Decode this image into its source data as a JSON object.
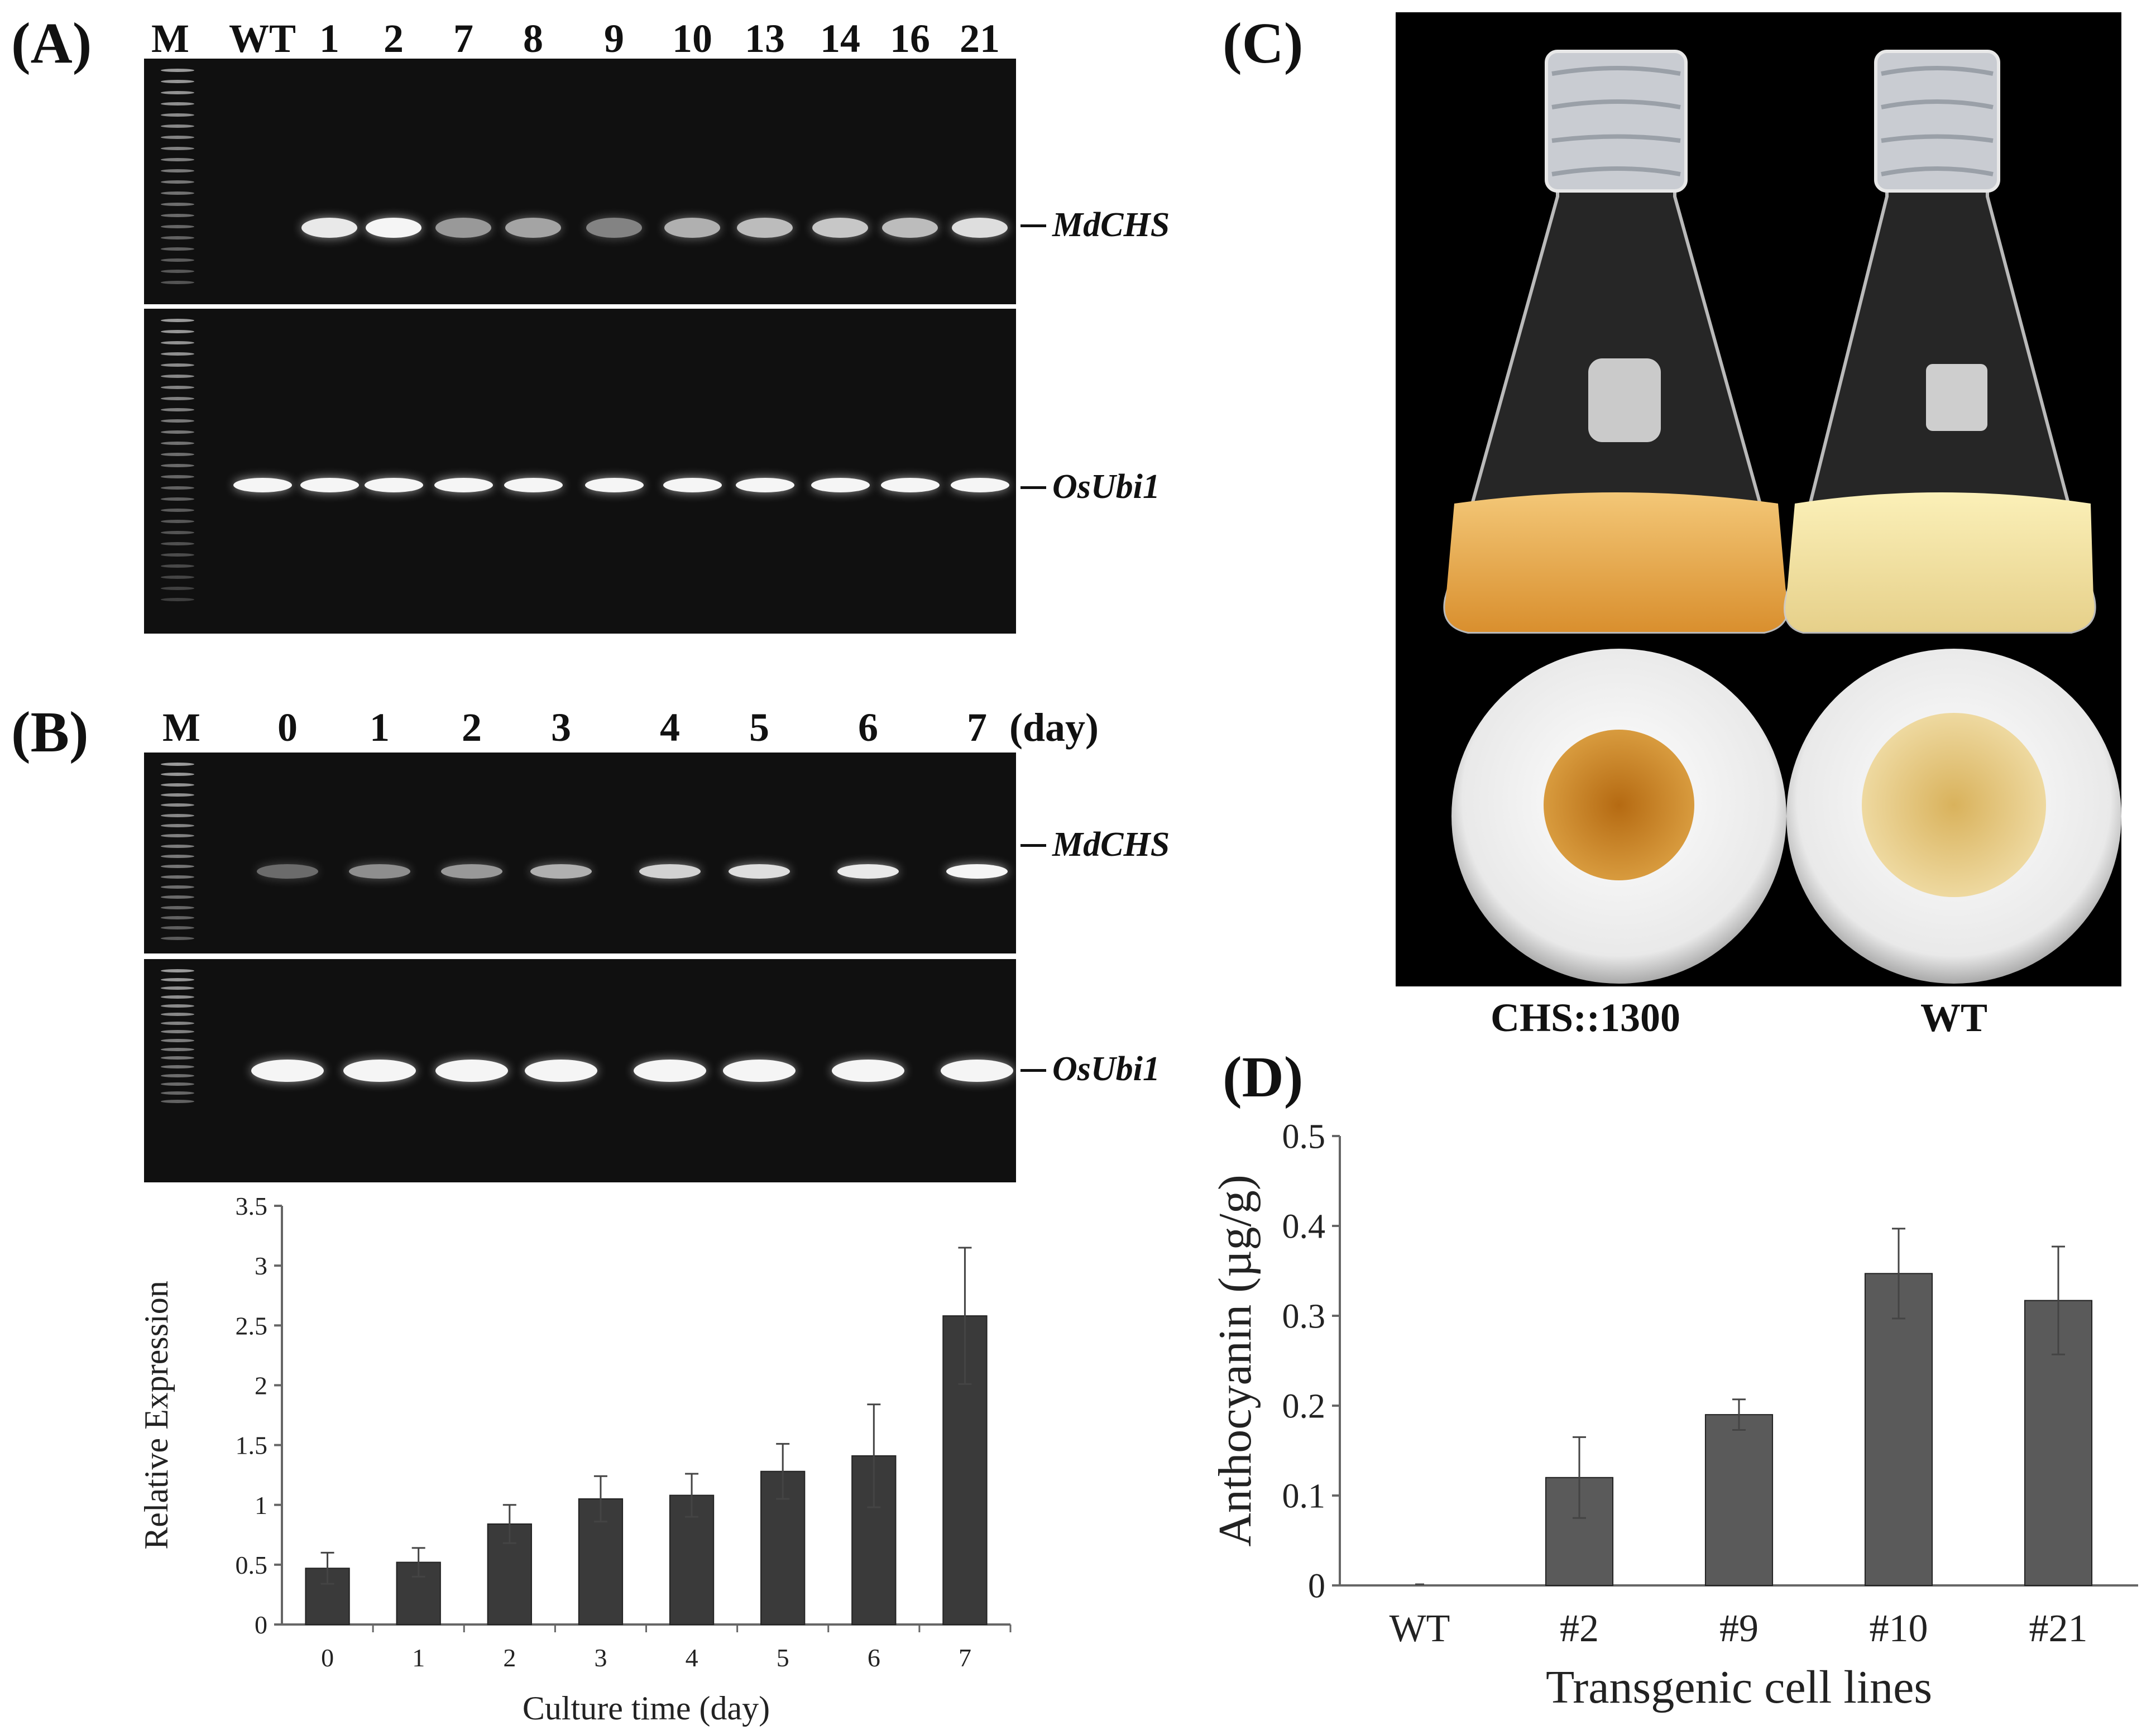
{
  "panelA": {
    "label": "(A)",
    "lanes": [
      "M",
      "WT",
      "1",
      "2",
      "7",
      "8",
      "9",
      "10",
      "13",
      "14",
      "16",
      "21"
    ],
    "genes": [
      "MdCHS",
      "OsUbi1"
    ]
  },
  "panelB": {
    "label": "(B)",
    "lanes": [
      "M",
      "0",
      "1",
      "2",
      "3",
      "4",
      "5",
      "6",
      "7"
    ],
    "unit": "(day)",
    "genes": [
      "MdCHS",
      "OsUbi1"
    ]
  },
  "panelC": {
    "label": "(C)",
    "captions": [
      "CHS::1300",
      "WT"
    ]
  },
  "panelD": {
    "label": "(D)"
  },
  "chart_data": [
    {
      "type": "bar",
      "panel": "B",
      "categories": [
        "0",
        "1",
        "2",
        "3",
        "4",
        "5",
        "6",
        "7"
      ],
      "values": [
        0.47,
        0.52,
        0.84,
        1.05,
        1.08,
        1.28,
        1.41,
        2.58
      ],
      "errors": [
        0.13,
        0.12,
        0.16,
        0.19,
        0.18,
        0.23,
        0.43,
        0.57
      ],
      "xlabel": "Culture time (day)",
      "ylabel": "Relative Expression",
      "ylim": [
        0,
        3.5
      ],
      "yticks": [
        "0",
        "0.5",
        "1",
        "1.5",
        "2",
        "2.5",
        "3",
        "3.5"
      ],
      "color": "#3a3a3a"
    },
    {
      "type": "bar",
      "panel": "D",
      "categories": [
        "WT",
        "#2",
        "#9",
        "#10",
        "#21"
      ],
      "values": [
        0.0,
        0.12,
        0.19,
        0.347,
        0.317
      ],
      "errors": [
        0.0,
        0.045,
        0.017,
        0.05,
        0.06
      ],
      "xlabel": "Transgenic cell lines",
      "ylabel": "Anthocyanin (µg/g)",
      "ylim": [
        0,
        0.5
      ],
      "yticks": [
        "0",
        "0.1",
        "0.2",
        "0.3",
        "0.4",
        "0.5"
      ],
      "color": "#5a5a5a"
    }
  ]
}
